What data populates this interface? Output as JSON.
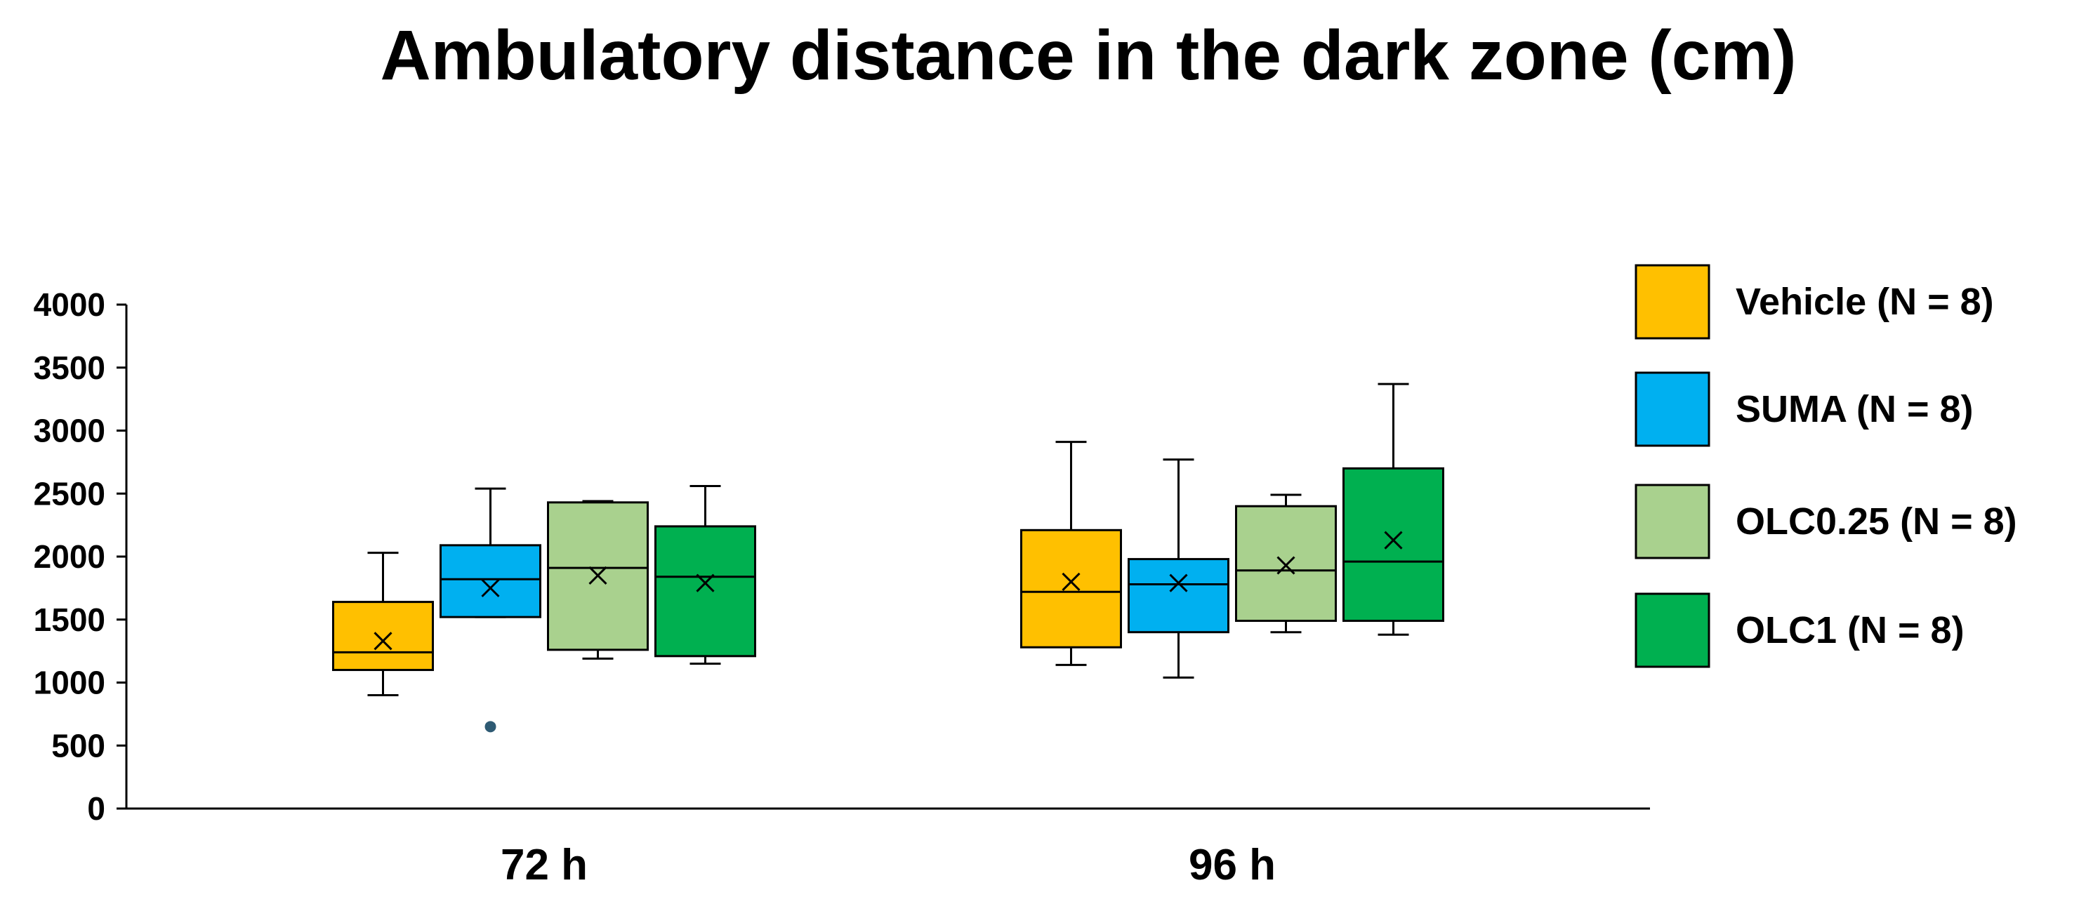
{
  "chart_data": {
    "type": "box",
    "title": "Ambulatory distance in the dark zone (cm)",
    "xlabel": "",
    "ylabel": "",
    "ylim": [
      0,
      4000
    ],
    "yticks": [
      0,
      500,
      1000,
      1500,
      2000,
      2500,
      3000,
      3500,
      4000
    ],
    "grid": false,
    "legend_position": "right",
    "categories": [
      "72 h",
      "96 h"
    ],
    "series": [
      {
        "name": "Vehicle (N = 8)",
        "color": "#FFC000",
        "boxes": [
          {
            "min": 900,
            "q1": 1100,
            "median": 1240,
            "q3": 1640,
            "max": 2030,
            "mean": 1330,
            "outliers": []
          },
          {
            "min": 1140,
            "q1": 1280,
            "median": 1720,
            "q3": 2210,
            "max": 2910,
            "mean": 1800,
            "outliers": []
          }
        ]
      },
      {
        "name": "SUMA (N = 8)",
        "color": "#00B0F0",
        "boxes": [
          {
            "min": 1520,
            "q1": 1520,
            "median": 1820,
            "q3": 2090,
            "max": 2540,
            "mean": 1750,
            "outliers": [
              650
            ]
          },
          {
            "min": 1040,
            "q1": 1400,
            "median": 1780,
            "q3": 1980,
            "max": 2770,
            "mean": 1790,
            "outliers": []
          }
        ]
      },
      {
        "name": "OLC0.25 (N = 8)",
        "color": "#A9D18E",
        "boxes": [
          {
            "min": 1190,
            "q1": 1260,
            "median": 1910,
            "q3": 2430,
            "max": 2440,
            "mean": 1850,
            "outliers": []
          },
          {
            "min": 1400,
            "q1": 1490,
            "median": 1890,
            "q3": 2400,
            "max": 2490,
            "mean": 1930,
            "outliers": []
          }
        ]
      },
      {
        "name": "OLC1 (N = 8)",
        "color": "#00B050",
        "boxes": [
          {
            "min": 1150,
            "q1": 1210,
            "median": 1840,
            "q3": 2240,
            "max": 2560,
            "mean": 1790,
            "outliers": []
          },
          {
            "min": 1380,
            "q1": 1490,
            "median": 1960,
            "q3": 2700,
            "max": 3370,
            "mean": 2130,
            "outliers": []
          }
        ]
      }
    ]
  }
}
